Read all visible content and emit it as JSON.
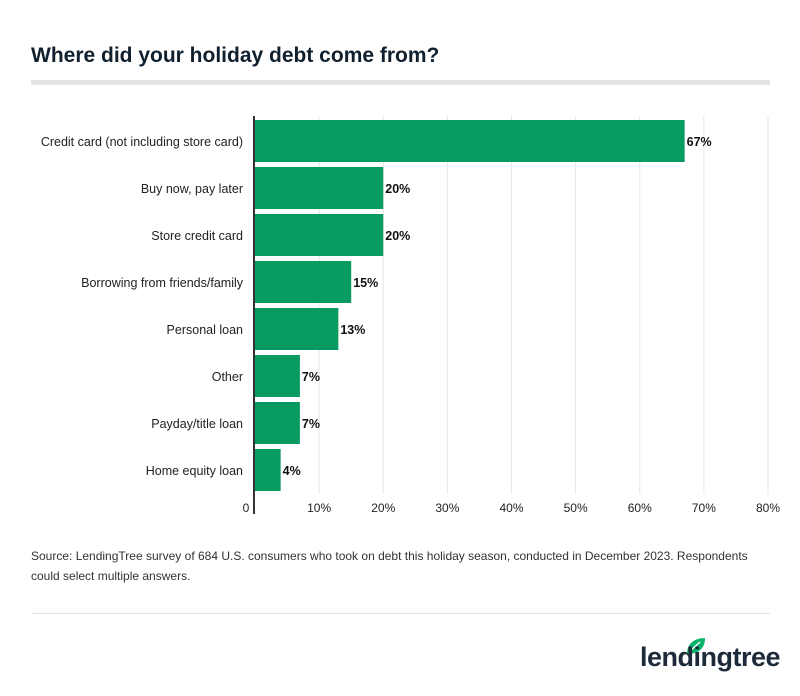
{
  "title": "Where did your holiday debt come from?",
  "chart_data": {
    "type": "bar",
    "orientation": "horizontal",
    "categories": [
      "Credit card (not including store card)",
      "Buy now, pay later",
      "Store credit card",
      "Borrowing from friends/family",
      "Personal loan",
      "Other",
      "Payday/title loan",
      "Home equity loan"
    ],
    "values": [
      67,
      20,
      20,
      15,
      13,
      7,
      7,
      4
    ],
    "data_labels": [
      "67%",
      "20%",
      "20%",
      "15%",
      "13%",
      "7%",
      "7%",
      "4%"
    ],
    "xlim": [
      0,
      80
    ],
    "x_ticks": [
      0,
      10,
      20,
      30,
      40,
      50,
      60,
      70,
      80
    ],
    "x_tick_labels": [
      "0",
      "10%",
      "20%",
      "30%",
      "40%",
      "50%",
      "60%",
      "70%",
      "80%"
    ],
    "grid": "vertical",
    "bar_color": "#079b62"
  },
  "source": "Source: LendingTree survey of 684 U.S. consumers who took on debt this holiday season, conducted in December 2023. Respondents could select multiple answers.",
  "logo": {
    "text": "lendingtree",
    "icon": "leaf-icon",
    "color": "#08b46a"
  }
}
